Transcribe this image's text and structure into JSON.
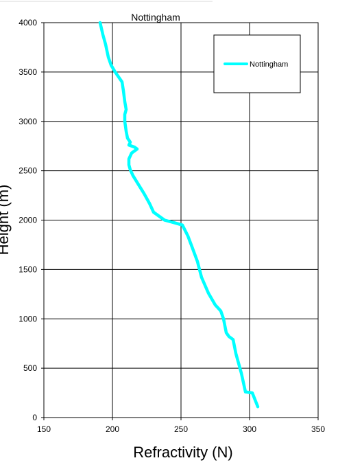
{
  "chart_data": {
    "type": "line",
    "title": "Nottingham",
    "xlabel": "Refractivity (N)",
    "ylabel": "Height (m)",
    "xlim": [
      150,
      350
    ],
    "ylim": [
      0,
      4000
    ],
    "x_ticks": [
      150,
      200,
      250,
      300,
      350
    ],
    "y_ticks": [
      0,
      500,
      1000,
      1500,
      2000,
      2500,
      3000,
      3500,
      4000
    ],
    "grid": true,
    "legend_position": "top-right",
    "series": [
      {
        "name": "Nottingham",
        "color": "#00FFFF",
        "points": [
          [
            306,
            110
          ],
          [
            302,
            250
          ],
          [
            297,
            260
          ],
          [
            294,
            450
          ],
          [
            290,
            650
          ],
          [
            288,
            790
          ],
          [
            285,
            820
          ],
          [
            283,
            860
          ],
          [
            281,
            1000
          ],
          [
            279,
            1080
          ],
          [
            277,
            1110
          ],
          [
            275,
            1140
          ],
          [
            270,
            1260
          ],
          [
            265,
            1420
          ],
          [
            262,
            1580
          ],
          [
            258,
            1730
          ],
          [
            255,
            1840
          ],
          [
            251,
            1950
          ],
          [
            246,
            1970
          ],
          [
            238,
            2000
          ],
          [
            230,
            2080
          ],
          [
            227,
            2170
          ],
          [
            223,
            2270
          ],
          [
            219,
            2360
          ],
          [
            215,
            2450
          ],
          [
            213,
            2510
          ],
          [
            212,
            2560
          ],
          [
            212,
            2620
          ],
          [
            214,
            2680
          ],
          [
            218,
            2720
          ],
          [
            216,
            2740
          ],
          [
            212,
            2760
          ],
          [
            213,
            2790
          ],
          [
            211,
            2830
          ],
          [
            210,
            2900
          ],
          [
            209,
            3000
          ],
          [
            209,
            3070
          ],
          [
            210,
            3120
          ],
          [
            209,
            3200
          ],
          [
            208,
            3310
          ],
          [
            207,
            3400
          ],
          [
            202,
            3500
          ],
          [
            199,
            3570
          ],
          [
            197,
            3650
          ],
          [
            195,
            3780
          ],
          [
            193,
            3880
          ],
          [
            191,
            4000
          ]
        ]
      }
    ]
  }
}
